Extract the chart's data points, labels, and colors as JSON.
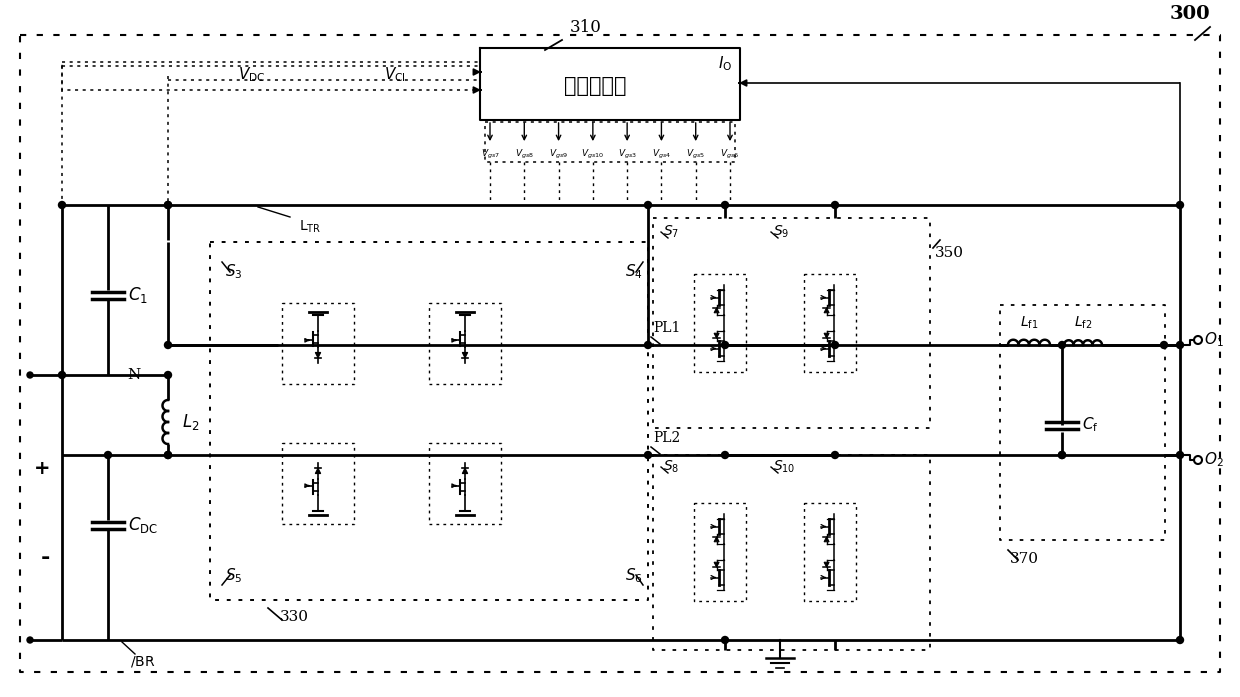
{
  "bg_color": "#ffffff",
  "controller_label": "第二控制器",
  "label_310": "310",
  "label_300": "300",
  "label_330": "330",
  "label_350": "350",
  "label_370": "370",
  "label_TR": "TR",
  "label_BR": "BR",
  "label_N": "N",
  "label_IO": "$I_{\\mathrm{O}}$",
  "label_C1": "$C_1$",
  "label_CDC": "$C_{\\mathrm{DC}}$",
  "label_L2": "$L_2$",
  "label_Lf1": "$L_{\\mathrm{f1}}$",
  "label_Lf2": "$L_{\\mathrm{f2}}$",
  "label_Cf": "$C_{\\mathrm{f}}$",
  "label_PL1": "PL1",
  "label_PL2": "PL2",
  "label_S3": "$S_3$",
  "label_S4": "$S_4$",
  "label_S5": "$S_5$",
  "label_S6": "$S_6$",
  "label_S7": "$S_7$",
  "label_S8": "$S_8$",
  "label_S9": "$S_9$",
  "label_S10": "$S_{10}$",
  "label_O1": "$O_1$",
  "label_O2": "$O_2$",
  "label_VDC": "$V_{\\mathrm{DC}}$",
  "label_VCl": "$V_{\\mathrm{Cl}}$",
  "vgs_labels": [
    "$V_{gs7}$",
    "$V_{gs8}$",
    "$V_{gs9}$",
    "$V_{gs10}$",
    "$V_{gs3}$",
    "$V_{gs4}$",
    "$V_{gs5}$",
    "$V_{gs6}$"
  ]
}
